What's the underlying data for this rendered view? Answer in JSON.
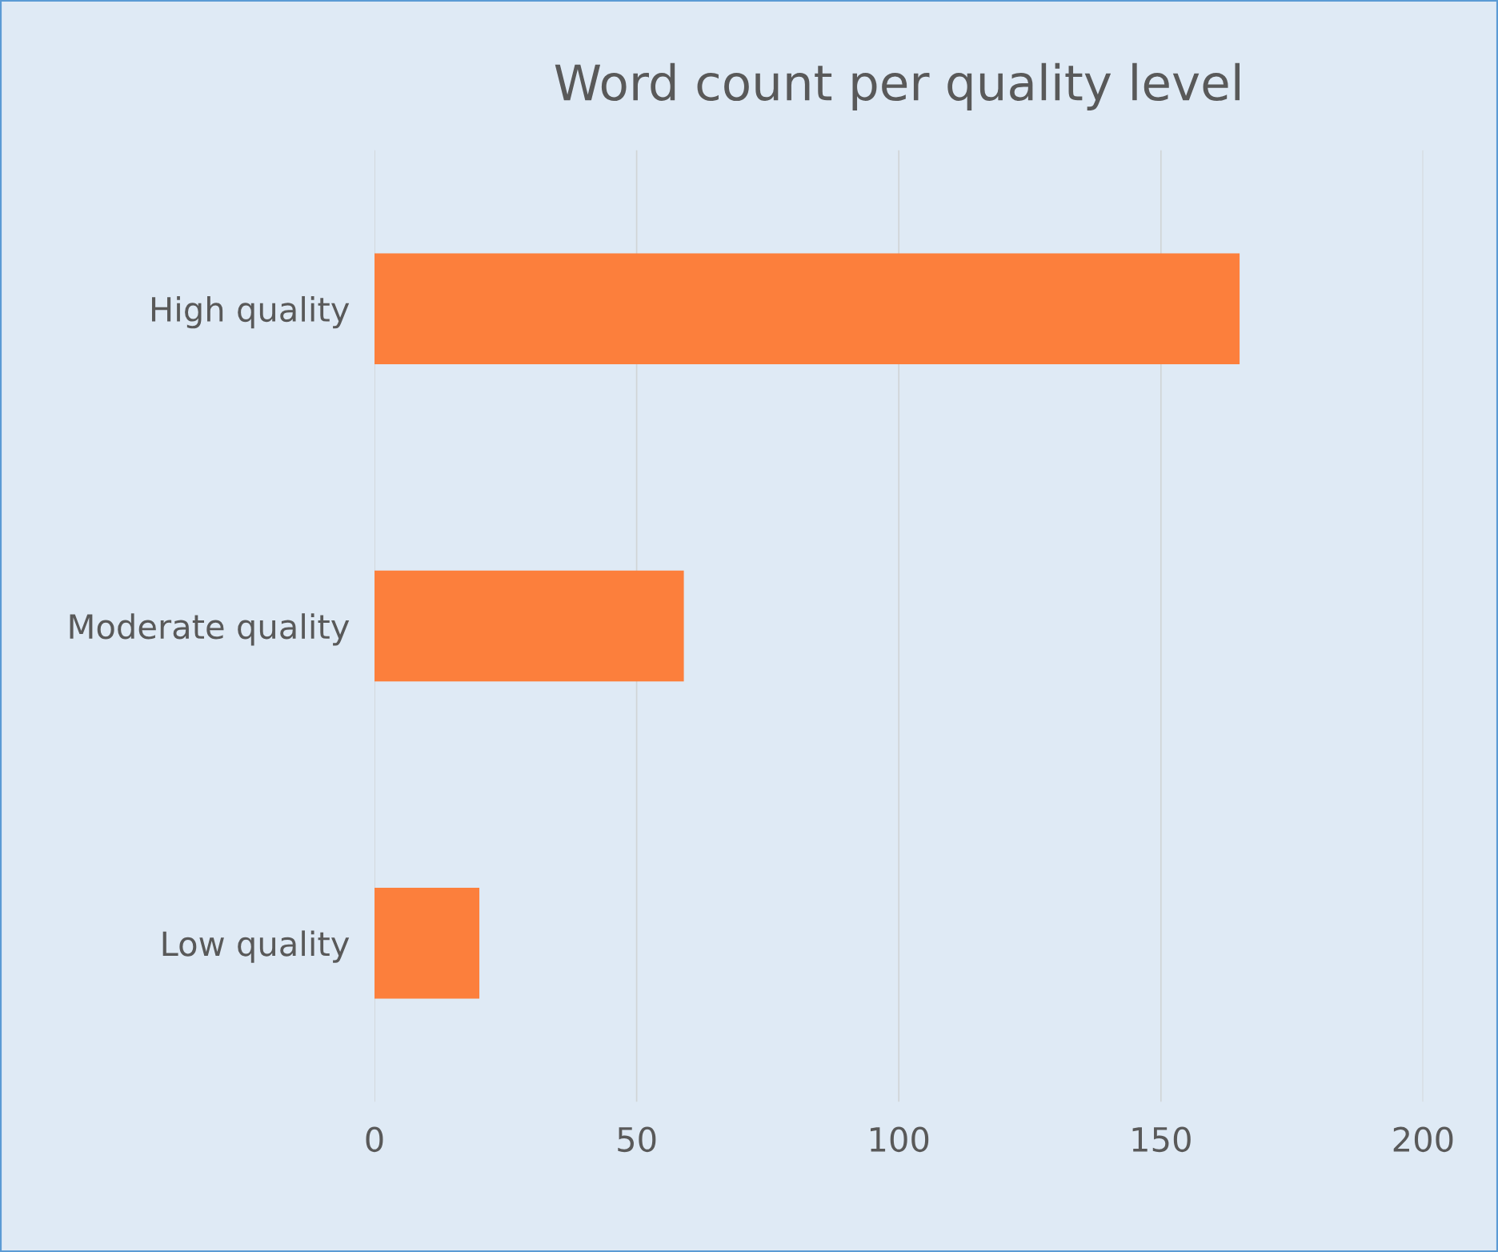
{
  "chart_data": {
    "type": "bar",
    "orientation": "horizontal",
    "title": "Word count per quality level",
    "categories": [
      "High quality",
      "Moderate quality",
      "Low quality"
    ],
    "values": [
      165,
      59,
      20
    ],
    "color": "#fc7f3c",
    "xlim": [
      0,
      200
    ],
    "xticks": [
      0,
      50,
      100,
      150,
      200
    ],
    "grid": "x"
  }
}
